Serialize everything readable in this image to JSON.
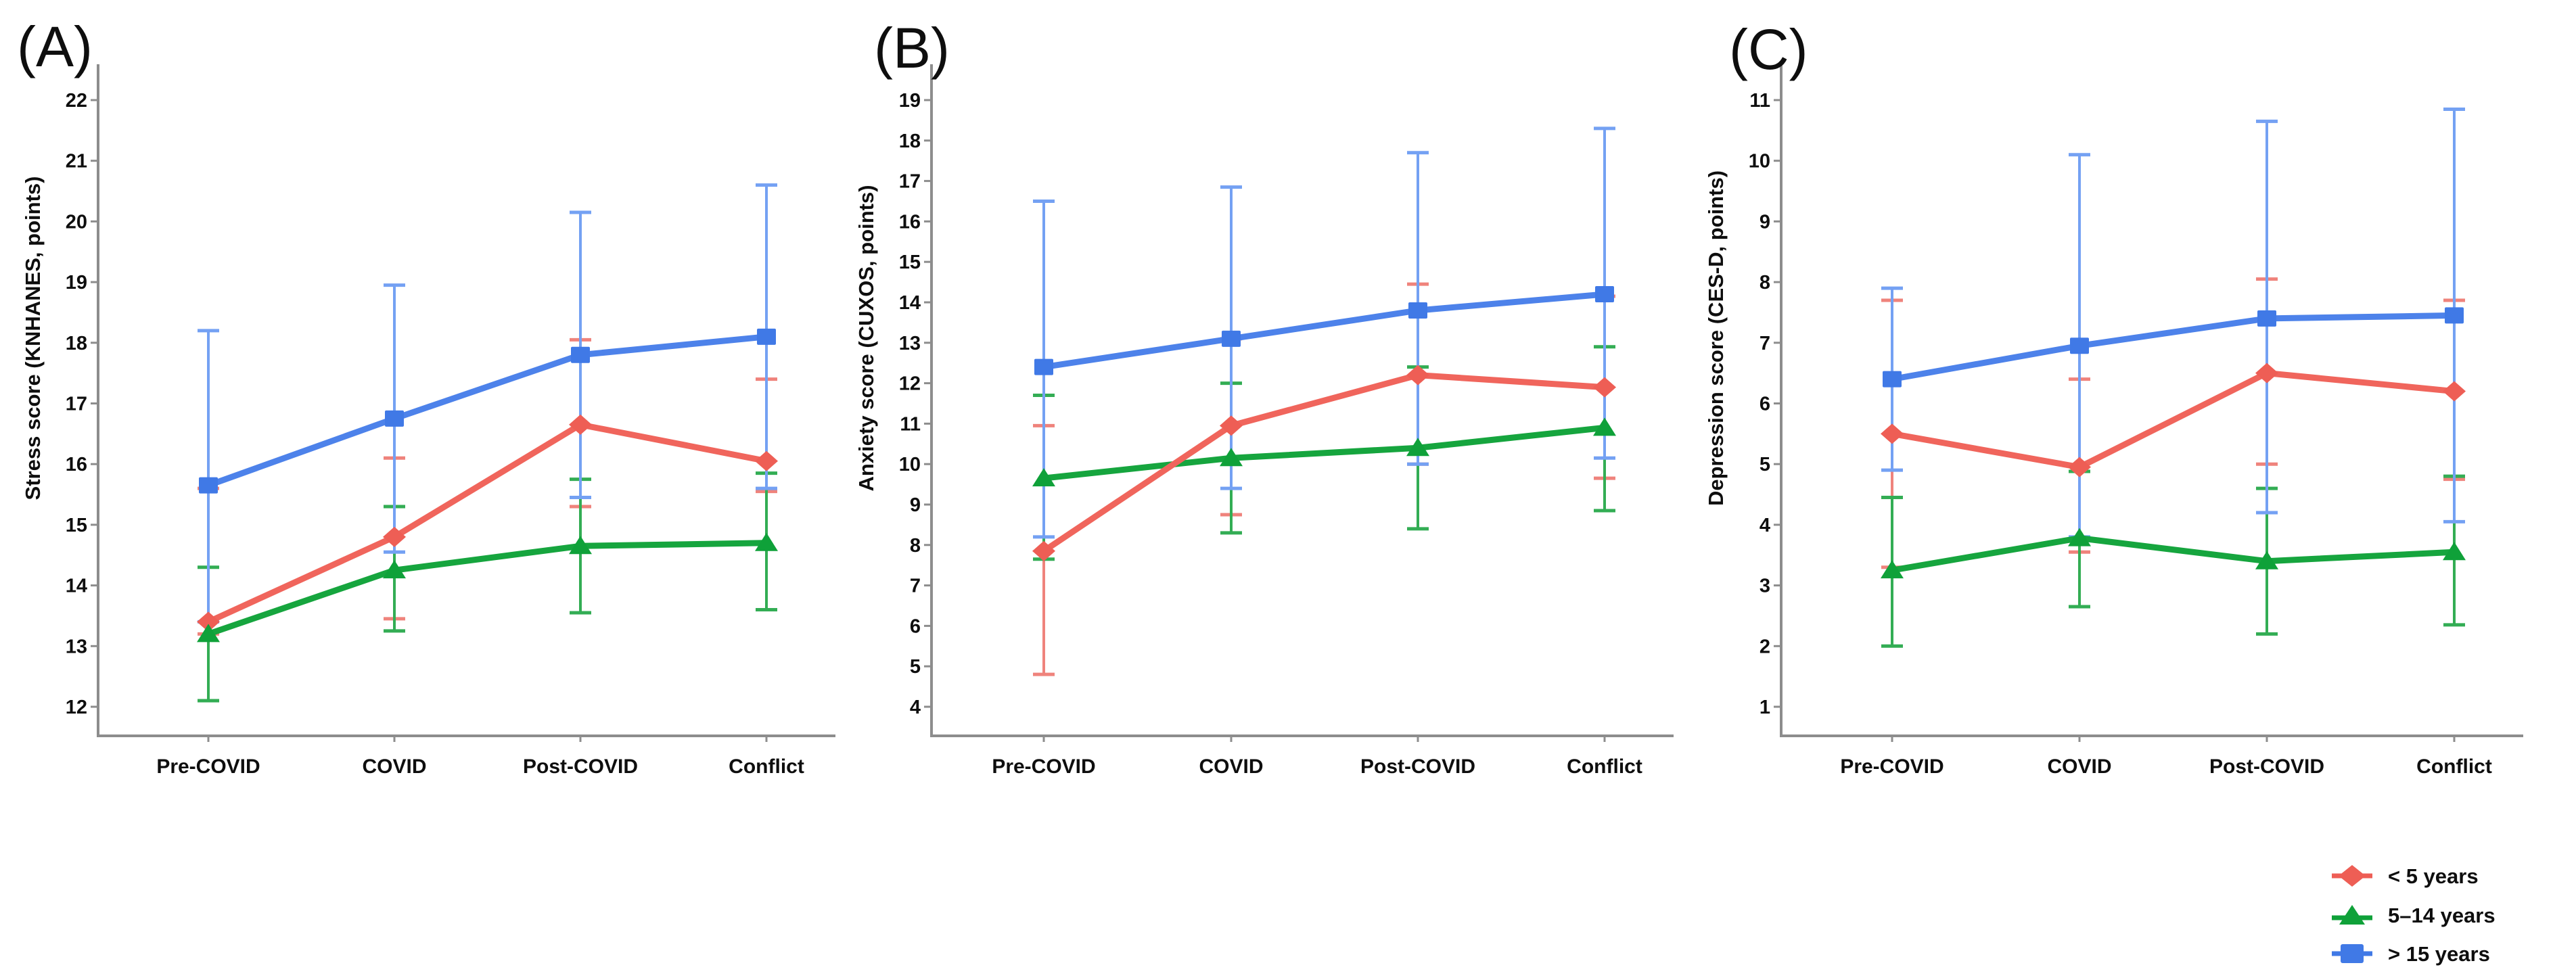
{
  "figure": {
    "background": "#ffffff",
    "axis_color": "#8d8d8d",
    "label_color": "#0e0e0e"
  },
  "categories": [
    "Pre-COVID",
    "COVID",
    "Post-COVID",
    "Conflict"
  ],
  "chart_data": [
    {
      "type": "line",
      "panel_label": "(A)",
      "ylabel": "Stress score (KNHANES, points)",
      "xlabel": "",
      "categories": [
        "Pre-COVID",
        "COVID",
        "Post-COVID",
        "Conflict"
      ],
      "ylim": [
        12,
        22
      ],
      "ytick_step": 1,
      "grid": false,
      "error_bars": true,
      "series": [
        {
          "name": "< 5 years",
          "marker": "diamond",
          "color_line": "#f0655c",
          "color_marker": "#ee5e55",
          "color_error": "#ef837c",
          "values": [
            13.4,
            14.8,
            16.65,
            16.05
          ],
          "err_lo": [
            13.2,
            13.45,
            15.3,
            15.55
          ],
          "err_hi": [
            15.6,
            16.1,
            18.05,
            17.4
          ]
        },
        {
          "name": "5–14 years",
          "marker": "triangle",
          "color_line": "#16a53e",
          "color_marker": "#0fa139",
          "color_error": "#33ad54",
          "values": [
            13.2,
            14.25,
            14.65,
            14.7
          ],
          "err_lo": [
            12.1,
            13.25,
            13.55,
            13.6
          ],
          "err_hi": [
            14.3,
            15.3,
            15.75,
            15.85
          ]
        },
        {
          "name": "> 15 years",
          "marker": "square",
          "color_line": "#4d82ea",
          "color_marker": "#4079e6",
          "color_error": "#74a1f3",
          "values": [
            15.65,
            16.75,
            17.8,
            18.1
          ],
          "err_lo": [
            13.4,
            14.55,
            15.45,
            15.6
          ],
          "err_hi": [
            18.2,
            18.95,
            20.15,
            20.6
          ]
        }
      ]
    },
    {
      "type": "line",
      "panel_label": "(B)",
      "ylabel": "Anxiety score (CUXOS, points)",
      "xlabel": "",
      "categories": [
        "Pre-COVID",
        "COVID",
        "Post-COVID",
        "Conflict"
      ],
      "ylim": [
        4,
        19
      ],
      "ytick_step": 1,
      "grid": false,
      "error_bars": true,
      "series": [
        {
          "name": "< 5 years",
          "marker": "diamond",
          "color_line": "#f0655c",
          "color_marker": "#ee5e55",
          "color_error": "#ef837c",
          "values": [
            7.85,
            10.95,
            12.2,
            11.9
          ],
          "err_lo": [
            4.8,
            8.75,
            10.0,
            9.65
          ],
          "err_hi": [
            10.95,
            13.1,
            14.45,
            14.15
          ]
        },
        {
          "name": "5–14 years",
          "marker": "triangle",
          "color_line": "#16a53e",
          "color_marker": "#0fa139",
          "color_error": "#33ad54",
          "values": [
            9.65,
            10.15,
            10.4,
            10.9
          ],
          "err_lo": [
            7.65,
            8.3,
            8.4,
            8.85
          ],
          "err_hi": [
            11.7,
            12.0,
            12.4,
            12.9
          ]
        },
        {
          "name": "> 15 years",
          "marker": "square",
          "color_line": "#4d82ea",
          "color_marker": "#4079e6",
          "color_error": "#74a1f3",
          "values": [
            12.4,
            13.1,
            13.8,
            14.2
          ],
          "err_lo": [
            8.2,
            9.4,
            10.0,
            10.15
          ],
          "err_hi": [
            16.5,
            16.85,
            17.7,
            18.3
          ]
        }
      ]
    },
    {
      "type": "line",
      "panel_label": "(C)",
      "ylabel": "Depression score (CES-D, points)",
      "xlabel": "",
      "categories": [
        "Pre-COVID",
        "COVID",
        "Post-COVID",
        "Conflict"
      ],
      "ylim": [
        1,
        11
      ],
      "ytick_step": 1,
      "grid": false,
      "error_bars": true,
      "series": [
        {
          "name": "< 5 years",
          "marker": "diamond",
          "color_line": "#f0655c",
          "color_marker": "#ee5e55",
          "color_error": "#ef837c",
          "values": [
            5.5,
            4.95,
            6.5,
            6.2
          ],
          "err_lo": [
            3.3,
            3.55,
            5.0,
            4.75
          ],
          "err_hi": [
            7.7,
            6.4,
            8.05,
            7.7
          ]
        },
        {
          "name": "5–14 years",
          "marker": "triangle",
          "color_line": "#16a53e",
          "color_marker": "#0fa139",
          "color_error": "#33ad54",
          "values": [
            3.25,
            3.78,
            3.4,
            3.55
          ],
          "err_lo": [
            2.0,
            2.65,
            2.2,
            2.35
          ],
          "err_hi": [
            4.45,
            4.88,
            4.6,
            4.8
          ]
        },
        {
          "name": "> 15 years",
          "marker": "square",
          "color_line": "#4d82ea",
          "color_marker": "#4079e6",
          "color_error": "#74a1f3",
          "values": [
            6.4,
            6.95,
            7.4,
            7.45
          ],
          "err_lo": [
            4.9,
            3.8,
            4.2,
            4.05
          ],
          "err_hi": [
            7.9,
            10.1,
            10.65,
            10.85
          ]
        }
      ]
    }
  ],
  "legend": {
    "position": "bottom-right",
    "items": [
      {
        "label": "< 5 years",
        "marker": "diamond",
        "color": "#ee5e55"
      },
      {
        "label": "5–14 years",
        "marker": "triangle",
        "color": "#0fa139"
      },
      {
        "label": "> 15 years",
        "marker": "square",
        "color": "#4079e6"
      }
    ]
  }
}
